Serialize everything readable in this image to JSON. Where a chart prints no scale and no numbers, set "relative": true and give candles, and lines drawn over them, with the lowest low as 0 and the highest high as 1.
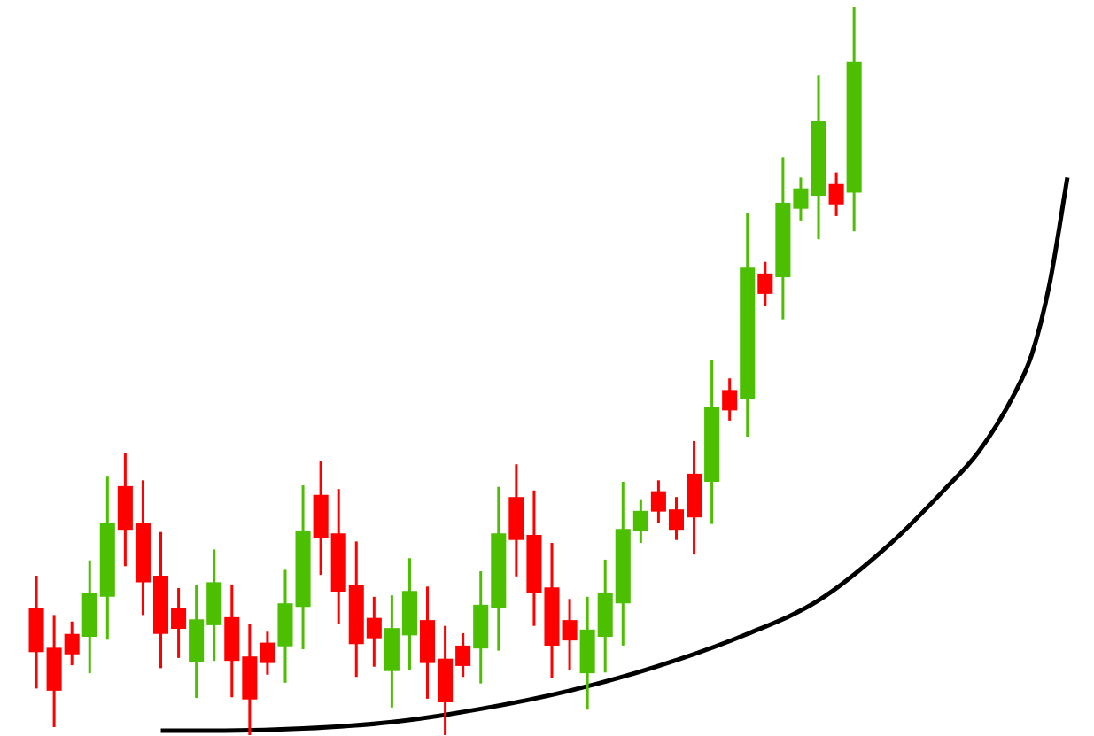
{
  "chart_data": {
    "type": "candlestick",
    "relative": true,
    "categories": [
      null,
      null,
      null,
      null,
      null,
      null,
      null,
      null,
      null,
      null,
      null,
      null,
      null,
      null,
      null,
      null,
      null,
      null,
      null,
      null,
      null,
      null,
      null,
      null,
      null,
      null,
      null,
      null,
      null,
      null,
      null,
      null,
      null,
      null,
      null,
      null,
      null,
      null,
      null,
      null,
      null,
      null,
      null,
      null,
      null,
      null,
      null,
      null,
      null,
      null,
      null,
      null,
      null,
      null,
      null,
      null,
      null,
      null,
      null
    ],
    "ohlc": [
      [
        0.174,
        0.219,
        0.064,
        0.114
      ],
      [
        0.12,
        0.165,
        0.011,
        0.061
      ],
      [
        0.139,
        0.156,
        0.096,
        0.111
      ],
      [
        0.135,
        0.24,
        0.085,
        0.195
      ],
      [
        0.19,
        0.355,
        0.131,
        0.292
      ],
      [
        0.342,
        0.387,
        0.232,
        0.282
      ],
      [
        0.291,
        0.35,
        0.165,
        0.21
      ],
      [
        0.219,
        0.279,
        0.092,
        0.139
      ],
      [
        0.174,
        0.202,
        0.106,
        0.146
      ],
      [
        0.1,
        0.206,
        0.051,
        0.159
      ],
      [
        0.151,
        0.255,
        0.102,
        0.21
      ],
      [
        0.162,
        0.207,
        0.052,
        0.102
      ],
      [
        0.108,
        0.153,
        0.0,
        0.049
      ],
      [
        0.127,
        0.142,
        0.083,
        0.099
      ],
      [
        0.122,
        0.227,
        0.072,
        0.181
      ],
      [
        0.176,
        0.343,
        0.118,
        0.28
      ],
      [
        0.33,
        0.376,
        0.22,
        0.27
      ],
      [
        0.277,
        0.338,
        0.152,
        0.197
      ],
      [
        0.206,
        0.266,
        0.08,
        0.125
      ],
      [
        0.161,
        0.19,
        0.094,
        0.133
      ],
      [
        0.088,
        0.192,
        0.038,
        0.147
      ],
      [
        0.137,
        0.243,
        0.089,
        0.198
      ],
      [
        0.158,
        0.204,
        0.05,
        0.099
      ],
      [
        0.105,
        0.15,
        0.0,
        0.045
      ],
      [
        0.123,
        0.14,
        0.08,
        0.095
      ],
      [
        0.119,
        0.225,
        0.071,
        0.179
      ],
      [
        0.174,
        0.341,
        0.116,
        0.277
      ],
      [
        0.327,
        0.372,
        0.218,
        0.268
      ],
      [
        0.275,
        0.336,
        0.15,
        0.195
      ],
      [
        0.203,
        0.264,
        0.078,
        0.123
      ],
      [
        0.158,
        0.187,
        0.09,
        0.13
      ],
      [
        0.085,
        0.19,
        0.035,
        0.145
      ],
      [
        0.135,
        0.241,
        0.086,
        0.195
      ],
      [
        0.181,
        0.348,
        0.123,
        0.283
      ],
      [
        0.28,
        0.324,
        0.264,
        0.308
      ],
      [
        0.335,
        0.35,
        0.291,
        0.307
      ],
      [
        0.31,
        0.327,
        0.268,
        0.282
      ],
      [
        0.359,
        0.404,
        0.248,
        0.299
      ],
      [
        0.348,
        0.515,
        0.29,
        0.45
      ],
      [
        0.474,
        0.49,
        0.432,
        0.446
      ],
      [
        0.462,
        0.717,
        0.41,
        0.642
      ],
      [
        0.634,
        0.65,
        0.59,
        0.606
      ],
      [
        0.629,
        0.794,
        0.571,
        0.731
      ],
      [
        0.723,
        0.766,
        0.707,
        0.751
      ],
      [
        0.741,
        0.906,
        0.681,
        0.843
      ],
      [
        0.757,
        0.773,
        0.713,
        0.729
      ],
      [
        0.745,
        1.0,
        0.692,
        0.925
      ],
      null,
      null,
      null,
      null,
      null,
      null,
      null,
      null,
      null,
      null,
      null,
      null
    ],
    "colors": [
      "#ff0000",
      "#ff0000",
      "#ff0000",
      "#4cbf00",
      "#4cbf00",
      "#ff0000",
      "#ff0000",
      "#ff0000",
      "#ff0000",
      "#4cbf00",
      "#4cbf00",
      "#ff0000",
      "#ff0000",
      "#ff0000",
      "#4cbf00",
      "#4cbf00",
      "#ff0000",
      "#ff0000",
      "#ff0000",
      "#ff0000",
      "#4cbf00",
      "#4cbf00",
      "#ff0000",
      "#ff0000",
      "#ff0000",
      "#4cbf00",
      "#4cbf00",
      "#ff0000",
      "#ff0000",
      "#ff0000",
      "#ff0000",
      "#4cbf00",
      "#4cbf00",
      "#4cbf00",
      "#4cbf00",
      "#ff0000",
      "#ff0000",
      "#ff0000",
      "#4cbf00",
      "#ff0000",
      "#4cbf00",
      "#ff0000",
      "#4cbf00",
      "#4cbf00",
      "#4cbf00",
      "#ff0000",
      "#4cbf00",
      null,
      null,
      null,
      null,
      null,
      null,
      null,
      null,
      null,
      null,
      null,
      null
    ],
    "series": [
      {
        "type": "line",
        "color": "#000000",
        "values": [
          null,
          null,
          null,
          null,
          null,
          null,
          null,
          0.006,
          null,
          null,
          0.006,
          null,
          null,
          null,
          null,
          0.009,
          null,
          null,
          null,
          null,
          0.018,
          null,
          null,
          null,
          null,
          0.036,
          null,
          null,
          null,
          null,
          0.061,
          null,
          null,
          null,
          null,
          0.095,
          null,
          null,
          null,
          null,
          0.139,
          null,
          null,
          null,
          0.185,
          null,
          null,
          null,
          0.262,
          null,
          null,
          0.335,
          null,
          0.389,
          null,
          0.468,
          0.523,
          0.62,
          0.766
        ]
      }
    ]
  }
}
